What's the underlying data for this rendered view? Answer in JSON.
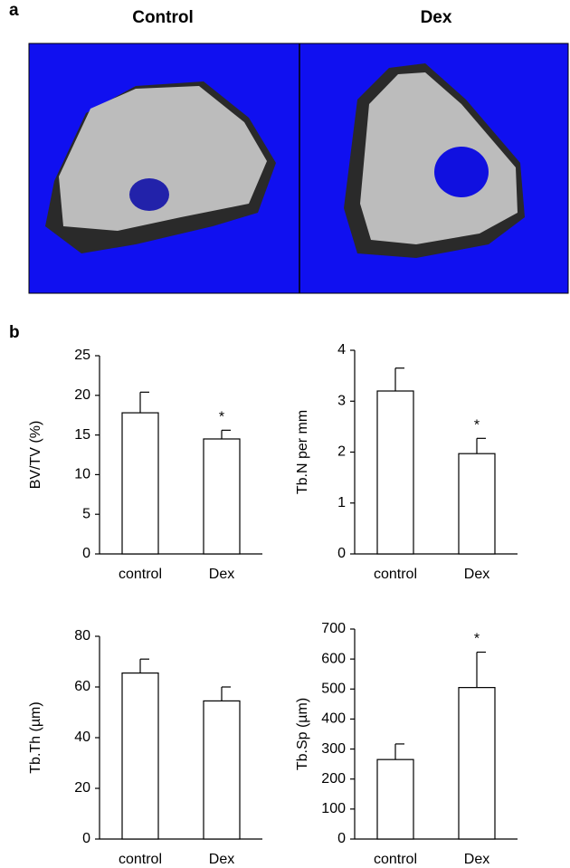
{
  "panel_labels": [
    "a",
    "b"
  ],
  "image_titles": [
    "Control",
    "Dex"
  ],
  "chart_data": [
    {
      "type": "bar",
      "ylabel": "BV/TV (%)",
      "categories": [
        "control",
        "Dex"
      ],
      "values": [
        17.8,
        14.5
      ],
      "errors": [
        2.6,
        1.1
      ],
      "significance": [
        null,
        "*"
      ],
      "color": "#ffffff",
      "ylim": [
        0,
        25
      ],
      "yticks": [
        0,
        5,
        10,
        15,
        20,
        25
      ]
    },
    {
      "type": "bar",
      "ylabel": "Tb.N per mm",
      "categories": [
        "control",
        "Dex"
      ],
      "values": [
        3.2,
        1.97
      ],
      "errors": [
        0.45,
        0.3
      ],
      "significance": [
        null,
        "*"
      ],
      "color": "#ffffff",
      "ylim": [
        0,
        4
      ],
      "yticks": [
        0,
        1,
        2,
        3,
        4
      ]
    },
    {
      "type": "bar",
      "ylabel": "Tb.Th (µm)",
      "categories": [
        "control",
        "Dex"
      ],
      "values": [
        65.5,
        54.5
      ],
      "errors": [
        5.5,
        5.5
      ],
      "significance": [
        null,
        null
      ],
      "color": "#ffffff",
      "ylim": [
        0,
        80
      ],
      "yticks": [
        0,
        20,
        40,
        60,
        80
      ]
    },
    {
      "type": "bar",
      "ylabel": "Tb.Sp (µm)",
      "categories": [
        "control",
        "Dex"
      ],
      "values": [
        265,
        505
      ],
      "errors": [
        52,
        118
      ],
      "significance": [
        null,
        "*"
      ],
      "color": "#ffffff",
      "ylim": [
        0,
        700
      ],
      "yticks": [
        0,
        100,
        200,
        300,
        400,
        500,
        600,
        700
      ]
    }
  ]
}
